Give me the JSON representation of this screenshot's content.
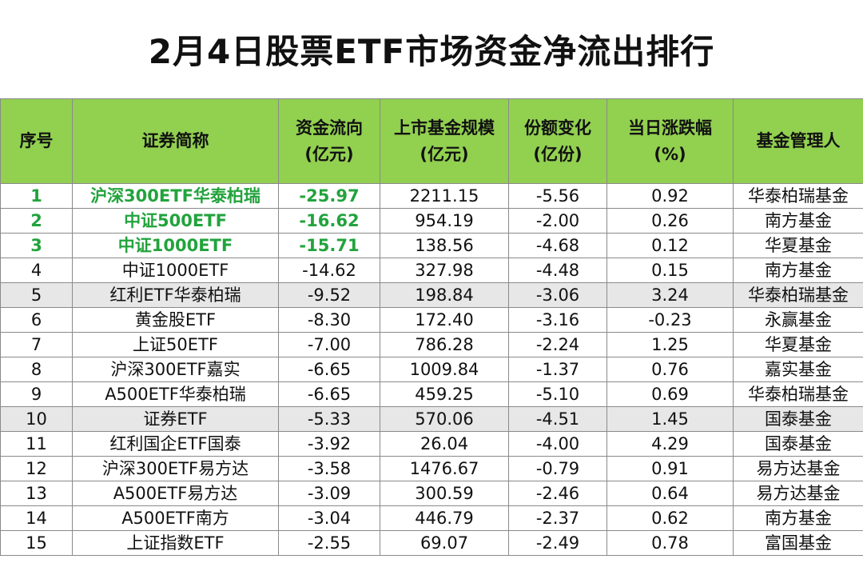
{
  "title": "2月4日股票ETF市场资金净流出排行",
  "colors": {
    "header_bg": "#92d050",
    "highlight_text": "#22a33c",
    "shaded_row": "#e7e7e7"
  },
  "columns": [
    {
      "line1": "序号",
      "line2": ""
    },
    {
      "line1": "证券简称",
      "line2": ""
    },
    {
      "line1": "资金流向",
      "line2": "(亿元)"
    },
    {
      "line1": "上市基金规模",
      "line2": "(亿元)"
    },
    {
      "line1": "份额变化",
      "line2": "(亿份)"
    },
    {
      "line1": "当日涨跌幅",
      "line2": "(%)"
    },
    {
      "line1": "基金管理人",
      "line2": ""
    }
  ],
  "rows": [
    {
      "no": "1",
      "name": "沪深300ETF华泰柏瑞",
      "flow": "-25.97",
      "scale": "2211.15",
      "share": "-5.56",
      "chg": "0.92",
      "manager": "华泰柏瑞基金"
    },
    {
      "no": "2",
      "name": "中证500ETF",
      "flow": "-16.62",
      "scale": "954.19",
      "share": "-2.00",
      "chg": "0.26",
      "manager": "南方基金"
    },
    {
      "no": "3",
      "name": "中证1000ETF",
      "flow": "-15.71",
      "scale": "138.56",
      "share": "-4.68",
      "chg": "0.12",
      "manager": "华夏基金"
    },
    {
      "no": "4",
      "name": "中证1000ETF",
      "flow": "-14.62",
      "scale": "327.98",
      "share": "-4.48",
      "chg": "0.15",
      "manager": "南方基金"
    },
    {
      "no": "5",
      "name": "红利ETF华泰柏瑞",
      "flow": "-9.52",
      "scale": "198.84",
      "share": "-3.06",
      "chg": "3.24",
      "manager": "华泰柏瑞基金"
    },
    {
      "no": "6",
      "name": "黄金股ETF",
      "flow": "-8.30",
      "scale": "172.40",
      "share": "-3.16",
      "chg": "-0.23",
      "manager": "永赢基金"
    },
    {
      "no": "7",
      "name": "上证50ETF",
      "flow": "-7.00",
      "scale": "786.28",
      "share": "-2.24",
      "chg": "1.25",
      "manager": "华夏基金"
    },
    {
      "no": "8",
      "name": "沪深300ETF嘉实",
      "flow": "-6.65",
      "scale": "1009.84",
      "share": "-1.37",
      "chg": "0.76",
      "manager": "嘉实基金"
    },
    {
      "no": "9",
      "name": "A500ETF华泰柏瑞",
      "flow": "-6.65",
      "scale": "459.25",
      "share": "-5.10",
      "chg": "0.69",
      "manager": "华泰柏瑞基金"
    },
    {
      "no": "10",
      "name": "证券ETF",
      "flow": "-5.33",
      "scale": "570.06",
      "share": "-4.51",
      "chg": "1.45",
      "manager": "国泰基金"
    },
    {
      "no": "11",
      "name": "红利国企ETF国泰",
      "flow": "-3.92",
      "scale": "26.04",
      "share": "-4.00",
      "chg": "4.29",
      "manager": "国泰基金"
    },
    {
      "no": "12",
      "name": "沪深300ETF易方达",
      "flow": "-3.58",
      "scale": "1476.67",
      "share": "-0.79",
      "chg": "0.91",
      "manager": "易方达基金"
    },
    {
      "no": "13",
      "name": "A500ETF易方达",
      "flow": "-3.09",
      "scale": "300.59",
      "share": "-2.46",
      "chg": "0.64",
      "manager": "易方达基金"
    },
    {
      "no": "14",
      "name": "A500ETF南方",
      "flow": "-3.04",
      "scale": "446.79",
      "share": "-2.37",
      "chg": "0.62",
      "manager": "南方基金"
    },
    {
      "no": "15",
      "name": "上证指数ETF",
      "flow": "-2.55",
      "scale": "69.07",
      "share": "-2.49",
      "chg": "0.78",
      "manager": "富国基金"
    }
  ]
}
